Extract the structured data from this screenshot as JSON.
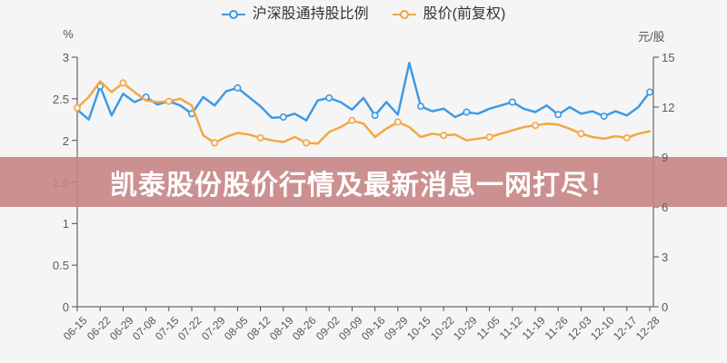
{
  "page": {
    "background": "#f5f5f6"
  },
  "legend": {
    "items": [
      {
        "label": "沪深股通持股比例",
        "color": "#3f9ae4"
      },
      {
        "label": "股价(前复权)",
        "color": "#f5a742"
      }
    ]
  },
  "banner": {
    "text": "凯泰股份股价行情及最新消息一网打尽！",
    "background": "#c68282",
    "color": "#ffffff"
  },
  "chart_data": {
    "type": "line",
    "title": "",
    "grid": false,
    "legend_position": "top-center",
    "x_labels": [
      "06-15",
      "06-22",
      "06-29",
      "07-08",
      "07-15",
      "07-22",
      "07-29",
      "08-05",
      "08-12",
      "08-19",
      "08-26",
      "09-02",
      "09-09",
      "09-16",
      "09-29",
      "10-15",
      "10-22",
      "10-29",
      "11-05",
      "11-12",
      "11-19",
      "11-26",
      "12-03",
      "12-10",
      "12-17",
      "12-28"
    ],
    "points_per_label": 2,
    "left_axis": {
      "label": "%",
      "min": 0,
      "max": 3,
      "tick_values": [
        3,
        2.5,
        2,
        1.5,
        1,
        0.5,
        0
      ]
    },
    "right_axis": {
      "label": "元/股",
      "min": 0,
      "max": 15,
      "tick_values": [
        15,
        12,
        9,
        6,
        3,
        0
      ]
    },
    "series": [
      {
        "name": "沪深股通持股比例",
        "axis": "left",
        "unit": "%",
        "color": "#3f9ae4",
        "marker_every": 4,
        "marker_offset": 2,
        "values": [
          2.37,
          2.25,
          2.65,
          2.3,
          2.56,
          2.46,
          2.52,
          2.43,
          2.47,
          2.42,
          2.32,
          2.52,
          2.42,
          2.59,
          2.63,
          2.52,
          2.41,
          2.27,
          2.28,
          2.32,
          2.24,
          2.48,
          2.51,
          2.46,
          2.37,
          2.51,
          2.3,
          2.46,
          2.31,
          2.93,
          2.41,
          2.35,
          2.38,
          2.28,
          2.34,
          2.32,
          2.38,
          2.42,
          2.46,
          2.38,
          2.34,
          2.42,
          2.31,
          2.4,
          2.32,
          2.35,
          2.29,
          2.35,
          2.3,
          2.4,
          2.58
        ]
      },
      {
        "name": "股价(前复权)",
        "axis": "right",
        "unit": "元/股",
        "color": "#f5a742",
        "marker_every": 4,
        "marker_offset": 0,
        "values": [
          11.95,
          12.6,
          13.55,
          12.9,
          13.45,
          12.9,
          12.4,
          12.3,
          12.35,
          12.5,
          12.1,
          10.3,
          9.85,
          10.2,
          10.45,
          10.35,
          10.15,
          10.0,
          9.9,
          10.2,
          9.85,
          9.8,
          10.5,
          10.8,
          11.2,
          11.0,
          10.2,
          10.7,
          11.1,
          10.8,
          10.2,
          10.4,
          10.3,
          10.35,
          10.0,
          10.1,
          10.2,
          10.4,
          10.6,
          10.8,
          10.9,
          11.0,
          10.95,
          10.7,
          10.4,
          10.2,
          10.1,
          10.25,
          10.15,
          10.4,
          10.55
        ]
      }
    ]
  }
}
